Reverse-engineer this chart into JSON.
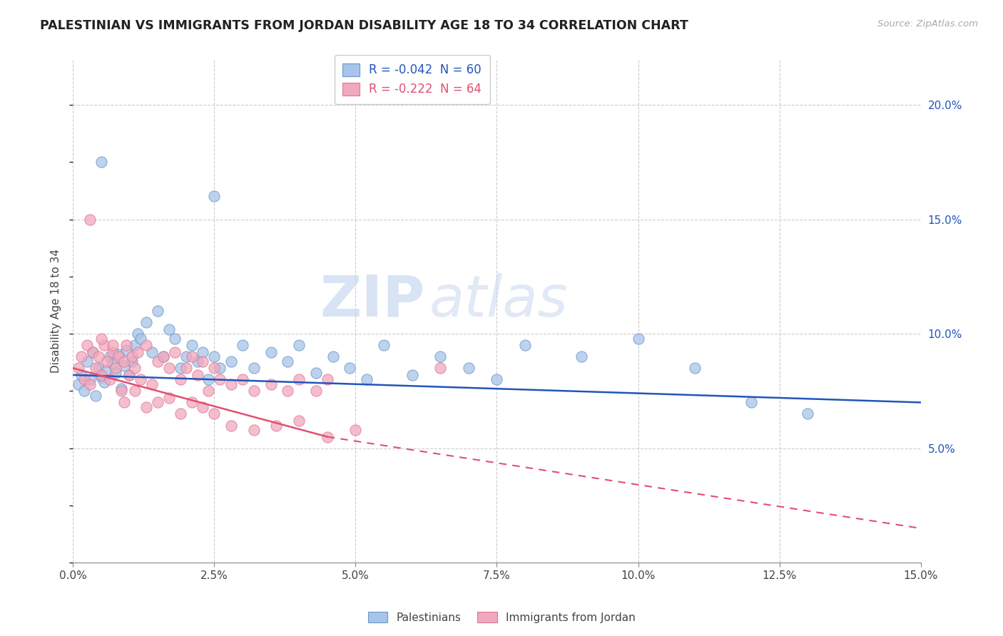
{
  "title": "PALESTINIAN VS IMMIGRANTS FROM JORDAN DISABILITY AGE 18 TO 34 CORRELATION CHART",
  "source": "Source: ZipAtlas.com",
  "ylabel": "Disability Age 18 to 34",
  "x_tick_labels": [
    "0.0%",
    "2.5%",
    "5.0%",
    "7.5%",
    "10.0%",
    "12.5%",
    "15.0%"
  ],
  "x_tick_values": [
    0.0,
    2.5,
    5.0,
    7.5,
    10.0,
    12.5,
    15.0
  ],
  "y_tick_labels_right": [
    "5.0%",
    "10.0%",
    "15.0%",
    "20.0%"
  ],
  "y_tick_values_right": [
    5.0,
    10.0,
    15.0,
    20.0
  ],
  "xlim": [
    0.0,
    15.0
  ],
  "ylim": [
    0.0,
    22.0
  ],
  "legend_blue_label": "R = -0.042  N = 60",
  "legend_pink_label": "R = -0.222  N = 64",
  "blue_color": "#a8c4e8",
  "pink_color": "#f2a8bc",
  "blue_line_color": "#2255bb",
  "pink_line_color": "#e0506e",
  "watermark_zip": "ZIP",
  "watermark_atlas": "atlas",
  "blue_scatter_x": [
    0.1,
    0.15,
    0.2,
    0.25,
    0.3,
    0.35,
    0.4,
    0.45,
    0.5,
    0.55,
    0.6,
    0.65,
    0.7,
    0.75,
    0.8,
    0.85,
    0.9,
    0.95,
    1.0,
    1.05,
    1.1,
    1.15,
    1.2,
    1.3,
    1.4,
    1.5,
    1.6,
    1.7,
    1.8,
    1.9,
    2.0,
    2.1,
    2.2,
    2.3,
    2.4,
    2.5,
    2.6,
    2.8,
    3.0,
    3.2,
    3.5,
    3.8,
    4.0,
    4.3,
    4.6,
    4.9,
    5.2,
    5.5,
    6.0,
    6.5,
    7.0,
    7.5,
    8.0,
    9.0,
    10.0,
    11.0,
    12.0,
    13.0,
    0.5,
    2.5
  ],
  "blue_scatter_y": [
    7.8,
    8.2,
    7.5,
    8.8,
    8.0,
    9.2,
    7.3,
    8.5,
    8.1,
    7.9,
    8.4,
    9.0,
    8.7,
    8.3,
    9.1,
    7.6,
    8.6,
    9.3,
    8.2,
    8.8,
    9.5,
    10.0,
    9.8,
    10.5,
    9.2,
    11.0,
    9.0,
    10.2,
    9.8,
    8.5,
    9.0,
    9.5,
    8.8,
    9.2,
    8.0,
    9.0,
    8.5,
    8.8,
    9.5,
    8.5,
    9.2,
    8.8,
    9.5,
    8.3,
    9.0,
    8.5,
    8.0,
    9.5,
    8.2,
    9.0,
    8.5,
    8.0,
    9.5,
    9.0,
    9.8,
    8.5,
    7.0,
    6.5,
    17.5,
    16.0
  ],
  "pink_scatter_x": [
    0.1,
    0.15,
    0.2,
    0.25,
    0.3,
    0.35,
    0.4,
    0.45,
    0.5,
    0.55,
    0.6,
    0.65,
    0.7,
    0.75,
    0.8,
    0.85,
    0.9,
    0.95,
    1.0,
    1.05,
    1.1,
    1.15,
    1.2,
    1.3,
    1.4,
    1.5,
    1.6,
    1.7,
    1.8,
    1.9,
    2.0,
    2.1,
    2.2,
    2.3,
    2.4,
    2.5,
    2.6,
    2.8,
    3.0,
    3.2,
    3.5,
    3.8,
    4.0,
    4.3,
    4.5,
    0.3,
    0.5,
    0.7,
    0.9,
    1.1,
    1.3,
    1.5,
    1.7,
    1.9,
    2.1,
    2.3,
    2.5,
    2.8,
    3.2,
    3.6,
    4.0,
    4.5,
    5.0,
    6.5
  ],
  "pink_scatter_y": [
    8.5,
    9.0,
    8.0,
    9.5,
    7.8,
    9.2,
    8.5,
    9.0,
    8.2,
    9.5,
    8.8,
    8.0,
    9.2,
    8.5,
    9.0,
    7.5,
    8.8,
    9.5,
    8.2,
    9.0,
    8.5,
    9.2,
    8.0,
    9.5,
    7.8,
    8.8,
    9.0,
    8.5,
    9.2,
    8.0,
    8.5,
    9.0,
    8.2,
    8.8,
    7.5,
    8.5,
    8.0,
    7.8,
    8.0,
    7.5,
    7.8,
    7.5,
    8.0,
    7.5,
    8.0,
    15.0,
    9.8,
    9.5,
    7.0,
    7.5,
    6.8,
    7.0,
    7.2,
    6.5,
    7.0,
    6.8,
    6.5,
    6.0,
    5.8,
    6.0,
    6.2,
    5.5,
    5.8,
    8.5
  ],
  "blue_line_x0": 0.0,
  "blue_line_y0": 8.2,
  "blue_line_x1": 15.0,
  "blue_line_y1": 7.0,
  "pink_solid_x0": 0.0,
  "pink_solid_y0": 8.5,
  "pink_solid_x1": 4.5,
  "pink_solid_y1": 5.5,
  "pink_dash_x0": 4.5,
  "pink_dash_y0": 5.5,
  "pink_dash_x1": 15.0,
  "pink_dash_y1": 1.5
}
